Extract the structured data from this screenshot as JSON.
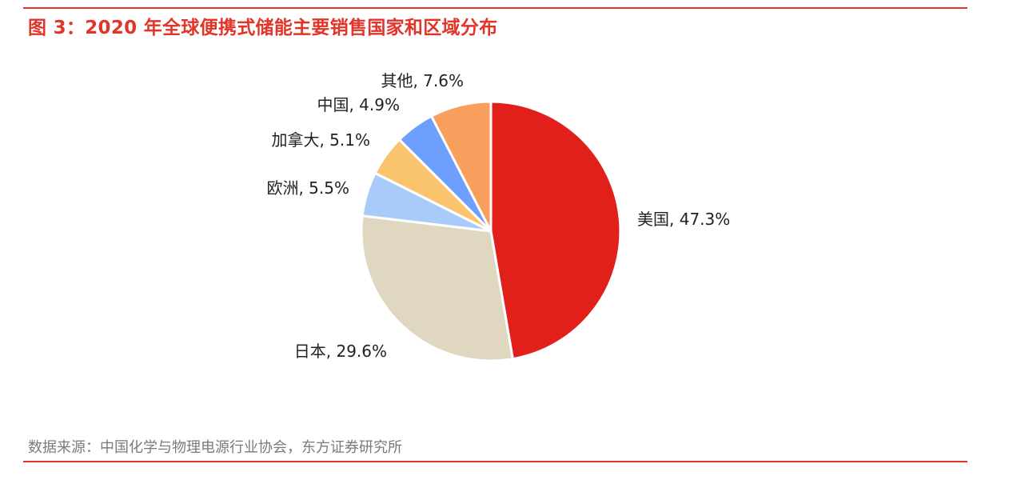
{
  "figure": {
    "title": "图 3：2020 年全球便携式储能主要销售国家和区域分布",
    "source": "数据来源：中国化学与物理电源行业协会，东方证券研究所"
  },
  "colors": {
    "accent": "#e3342a",
    "source_text": "#7a7a7a"
  },
  "chart_data": {
    "type": "pie",
    "title": "",
    "slices": [
      {
        "name": "美国",
        "value": 47.3,
        "label": "美国, 47.3%",
        "color": "#e1201c"
      },
      {
        "name": "日本",
        "value": 29.6,
        "label": "日本, 29.6%",
        "color": "#e0d7c1"
      },
      {
        "name": "欧洲",
        "value": 5.5,
        "label": "欧洲, 5.5%",
        "color": "#a9cbfa"
      },
      {
        "name": "加拿大",
        "value": 5.1,
        "label": "加拿大, 5.1%",
        "color": "#fac46e"
      },
      {
        "name": "中国",
        "value": 4.9,
        "label": "中国, 4.9%",
        "color": "#6f9ffd"
      },
      {
        "name": "其他",
        "value": 7.6,
        "label": "其他, 7.6%",
        "color": "#f89f5d"
      }
    ],
    "start": "12 o'clock",
    "direction": "clockwise"
  }
}
